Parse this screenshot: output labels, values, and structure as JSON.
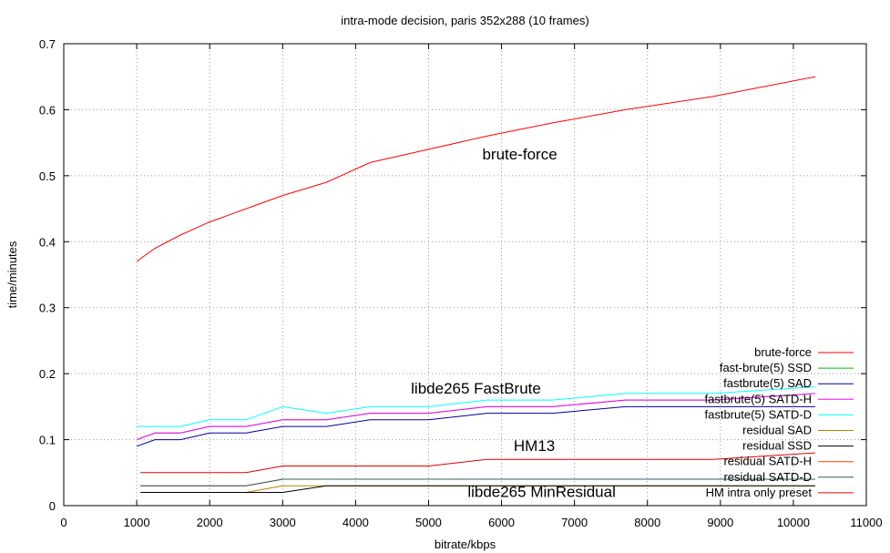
{
  "chart_data": {
    "type": "line",
    "title": "intra-mode decision, paris 352x288 (10 frames)",
    "xlabel": "bitrate/kbps",
    "ylabel": "time/minutes",
    "xlim": [
      0,
      11000
    ],
    "ylim": [
      0,
      0.7
    ],
    "xticks": [
      "0",
      "1000",
      "2000",
      "3000",
      "4000",
      "5000",
      "6000",
      "7000",
      "8000",
      "9000",
      "10000",
      "11000"
    ],
    "yticks": [
      "0",
      "0.1",
      "0.2",
      "0.3",
      "0.4",
      "0.5",
      "0.6",
      "0.7"
    ],
    "grid": true,
    "legend_position": "bottom-right",
    "annotations": [
      {
        "text": "brute-force",
        "x": 6250,
        "y": 0.525
      },
      {
        "text": "libde265 FastBrute",
        "x": 5650,
        "y": 0.17
      },
      {
        "text": "HM13",
        "x": 6450,
        "y": 0.083
      },
      {
        "text": "libde265 MinResidual",
        "x": 6550,
        "y": 0.013
      }
    ],
    "series": [
      {
        "name": "brute-force",
        "color": "#ff0000",
        "x": [
          1000,
          1250,
          1600,
          2000,
          2500,
          3000,
          3600,
          4200,
          5000,
          5800,
          6700,
          7700,
          8900,
          10300
        ],
        "y": [
          0.37,
          0.39,
          0.41,
          0.43,
          0.45,
          0.47,
          0.49,
          0.52,
          0.54,
          0.56,
          0.58,
          0.6,
          0.62,
          0.65
        ]
      },
      {
        "name": "fast-brute(5) SSD",
        "color": "#00c000",
        "x": [
          1000,
          1250,
          1600,
          2000,
          2500,
          3000,
          3600,
          4200,
          5000,
          5800,
          6700,
          7700,
          8900,
          10300
        ],
        "y": [
          0.1,
          0.11,
          0.11,
          0.12,
          0.12,
          0.13,
          0.13,
          0.14,
          0.14,
          0.15,
          0.15,
          0.16,
          0.16,
          0.17
        ]
      },
      {
        "name": "fastbrute(5) SAD",
        "color": "#0000a0",
        "x": [
          1000,
          1250,
          1600,
          2000,
          2500,
          3000,
          3600,
          4200,
          5000,
          5800,
          6700,
          7700,
          8900,
          10300
        ],
        "y": [
          0.09,
          0.1,
          0.1,
          0.11,
          0.11,
          0.12,
          0.12,
          0.13,
          0.13,
          0.14,
          0.14,
          0.15,
          0.15,
          0.15
        ]
      },
      {
        "name": "fastbrute(5) SATD-H",
        "color": "#ff00ff",
        "x": [
          1000,
          1250,
          1600,
          2000,
          2500,
          3000,
          3600,
          4200,
          5000,
          5800,
          6700,
          7700,
          8900,
          10300
        ],
        "y": [
          0.1,
          0.11,
          0.11,
          0.12,
          0.12,
          0.13,
          0.13,
          0.14,
          0.14,
          0.15,
          0.15,
          0.16,
          0.16,
          0.17
        ]
      },
      {
        "name": "fastbrute(5) SATD-D",
        "color": "#00ffff",
        "x": [
          1000,
          1250,
          1600,
          2000,
          2500,
          3000,
          3600,
          4200,
          5000,
          5800,
          6700,
          7700,
          8900,
          10300
        ],
        "y": [
          0.12,
          0.12,
          0.12,
          0.13,
          0.13,
          0.15,
          0.14,
          0.15,
          0.15,
          0.16,
          0.16,
          0.17,
          0.17,
          0.18
        ]
      },
      {
        "name": "residual SAD",
        "color": "#c08000",
        "x": [
          1050,
          1300,
          1650,
          2000,
          2500,
          3000,
          3600,
          4200,
          5000,
          5800,
          6700,
          7700,
          8900,
          10300
        ],
        "y": [
          0.02,
          0.02,
          0.02,
          0.02,
          0.02,
          0.03,
          0.03,
          0.03,
          0.03,
          0.03,
          0.03,
          0.03,
          0.03,
          0.03
        ]
      },
      {
        "name": "residual SSD",
        "color": "#000000",
        "x": [
          1050,
          1300,
          1650,
          2000,
          2500,
          3000,
          3600,
          4200,
          5000,
          5800,
          6700,
          7700,
          8900,
          10300
        ],
        "y": [
          0.02,
          0.02,
          0.02,
          0.02,
          0.02,
          0.02,
          0.03,
          0.03,
          0.03,
          0.03,
          0.03,
          0.03,
          0.03,
          0.03
        ]
      },
      {
        "name": "residual SATD-H",
        "color": "#ff4000",
        "x": [
          1050,
          1300,
          1650,
          2000,
          2500,
          3000,
          3600,
          4200,
          5000,
          5800,
          6700,
          7700,
          8900,
          10300
        ],
        "y": [
          0.03,
          0.03,
          0.03,
          0.03,
          0.03,
          0.04,
          0.04,
          0.04,
          0.04,
          0.04,
          0.04,
          0.04,
          0.04,
          0.04
        ]
      },
      {
        "name": "residual SATD-D",
        "color": "#306060",
        "x": [
          1050,
          1300,
          1650,
          2000,
          2500,
          3000,
          3600,
          4200,
          5000,
          5800,
          6700,
          7700,
          8900,
          10300
        ],
        "y": [
          0.03,
          0.03,
          0.03,
          0.03,
          0.03,
          0.04,
          0.04,
          0.04,
          0.04,
          0.04,
          0.04,
          0.04,
          0.04,
          0.04
        ]
      },
      {
        "name": "HM intra only preset",
        "color": "#e00000",
        "x": [
          1050,
          1300,
          1650,
          2000,
          2500,
          3000,
          3600,
          4200,
          5000,
          5800,
          6700,
          7700,
          8900,
          10300
        ],
        "y": [
          0.05,
          0.05,
          0.05,
          0.05,
          0.05,
          0.06,
          0.06,
          0.06,
          0.06,
          0.07,
          0.07,
          0.07,
          0.07,
          0.08
        ]
      }
    ]
  }
}
